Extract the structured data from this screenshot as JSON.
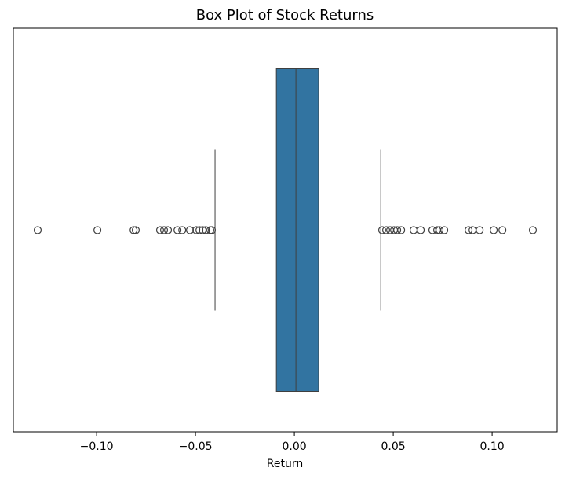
{
  "chart_data": {
    "type": "box",
    "title": "Box Plot of Stock Returns",
    "xlabel": "Return",
    "categories": [
      null
    ],
    "color": "#3274a1",
    "boxes": [
      {
        "whislo": -0.0401,
        "q1": -0.0091,
        "med": 0.0008,
        "q3": 0.0123,
        "whishi": 0.0437,
        "fliers": [
          -0.1298,
          -0.0996,
          -0.0813,
          -0.0802,
          -0.0679,
          -0.0659,
          -0.0639,
          -0.0591,
          -0.0567,
          -0.0528,
          -0.0496,
          -0.048,
          -0.0464,
          -0.0448,
          -0.0425,
          -0.0417,
          0.0444,
          0.0464,
          0.0484,
          0.0504,
          0.052,
          0.054,
          0.0603,
          0.0639,
          0.0698,
          0.0722,
          0.0734,
          0.0758,
          0.0881,
          0.0901,
          0.0937,
          0.1008,
          0.1052,
          0.1206
        ]
      }
    ],
    "xlim": [
      -0.1421,
      0.1329
    ],
    "xticks": [
      {
        "value": -0.1,
        "label": "−0.10"
      },
      {
        "value": -0.05,
        "label": "−0.05"
      },
      {
        "value": 0,
        "label": "0.00"
      },
      {
        "value": 0.05,
        "label": "0.05"
      },
      {
        "value": 0.1,
        "label": "0.10"
      }
    ]
  }
}
